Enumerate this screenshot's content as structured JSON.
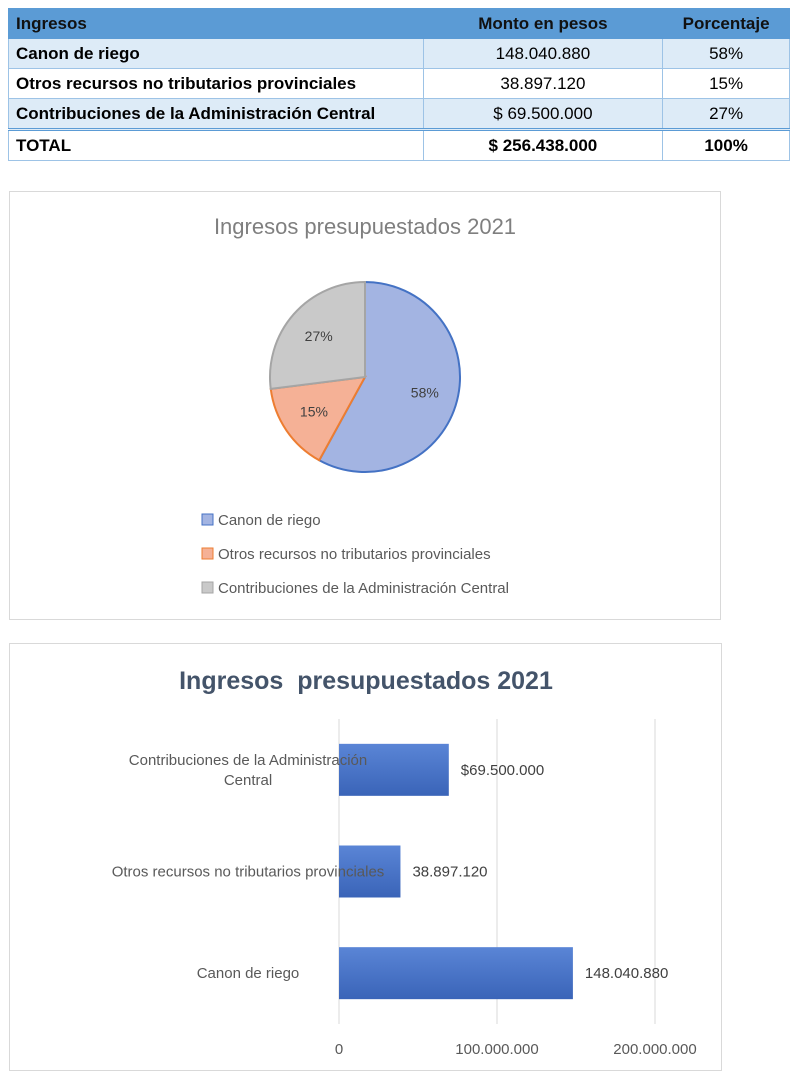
{
  "table": {
    "headers": [
      "Ingresos",
      "Monto en pesos",
      "Porcentaje"
    ],
    "rows": [
      {
        "concept": "Canon de riego",
        "amount": "148.040.880",
        "percent": "58%"
      },
      {
        "concept": "Otros recursos no tributarios provinciales",
        "amount": "38.897.120",
        "percent": "15%"
      },
      {
        "concept": "Contribuciones de la Administración Central",
        "amount": "$ 69.500.000",
        "percent": "27%"
      }
    ],
    "total": {
      "concept": "TOTAL",
      "amount": "$ 256.438.000",
      "percent": "100%"
    }
  },
  "chart_data": [
    {
      "type": "pie",
      "title": "Ingresos presupuestados 2021",
      "categories": [
        "Canon de riego",
        "Otros recursos no tributarios provinciales",
        "Contribuciones de la Administración Central"
      ],
      "values": [
        58,
        15,
        27
      ],
      "labels": [
        "58%",
        "15%",
        "27%"
      ],
      "colors": [
        "#a3b4e2",
        "#f5b196",
        "#c9c9c9"
      ],
      "edge_colors": [
        "#4472c4",
        "#ed7d31",
        "#a5a5a5"
      ],
      "legend": "bottom-left"
    },
    {
      "type": "bar",
      "orientation": "horizontal",
      "title": "Ingresos  presupuestados 2021",
      "categories": [
        "Contribuciones de la Administración Central",
        "Otros recursos no tributarios provinciales",
        "Canon de riego"
      ],
      "category_lines": [
        [
          "Contribuciones de la Administración",
          "Central"
        ],
        [
          "Otros recursos no tributarios provinciales"
        ],
        [
          "Canon de riego"
        ]
      ],
      "values": [
        69500000,
        38897120,
        148040880
      ],
      "data_labels": [
        "$69.500.000",
        "38.897.120",
        "148.040.880"
      ],
      "xlim": [
        0,
        200000000
      ],
      "ticks": [
        0,
        100000000,
        200000000
      ],
      "tick_labels": [
        "0",
        "100.000.000",
        "200.000.000"
      ],
      "grid": true,
      "bar_color": "#4472c4"
    }
  ]
}
